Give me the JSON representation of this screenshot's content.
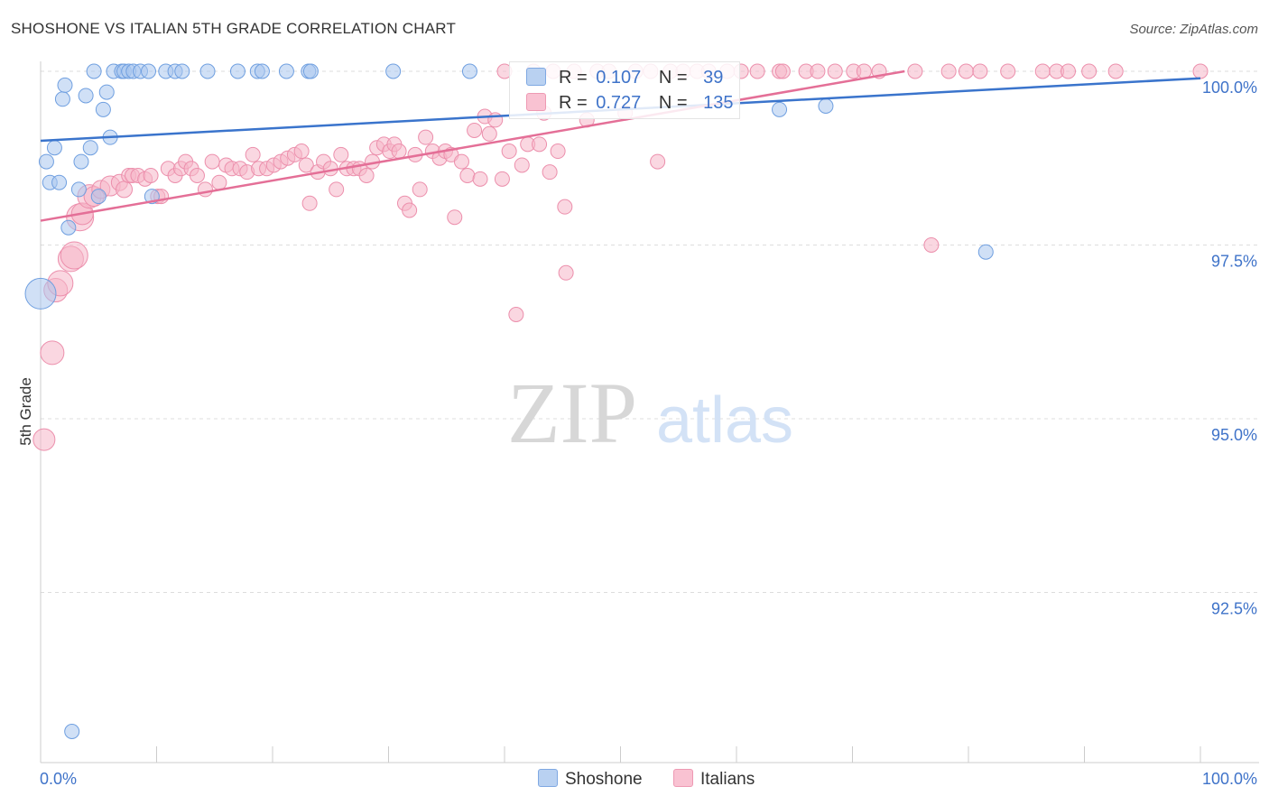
{
  "title": "SHOSHONE VS ITALIAN 5TH GRADE CORRELATION CHART",
  "source": "Source: ZipAtlas.com",
  "watermark": {
    "zip": "ZIP",
    "atlas": "atlas"
  },
  "legend_top": [
    {
      "r_label": "R =",
      "r_value": "0.107",
      "n_label": "N =",
      "n_value": "39"
    },
    {
      "r_label": "R =",
      "r_value": "0.727",
      "n_label": "N =",
      "n_value": "135"
    }
  ],
  "legend_bottom": [
    "Shoshone",
    "Italians"
  ],
  "colors": {
    "shoshone_fill": "#a9c6ef",
    "shoshone_stroke": "#6f9fe0",
    "shoshone_line": "#3a74cc",
    "italians_fill": "#f6b7c9",
    "italians_stroke": "#ec8fac",
    "italians_line": "#e46f97",
    "tick_text": "#3f73c9",
    "grid": "#dddddd"
  },
  "chart_data": {
    "type": "scatter",
    "title": "SHOSHONE VS ITALIAN 5TH GRADE CORRELATION CHART",
    "xlabel": "",
    "ylabel": "5th Grade",
    "xlim": [
      0,
      100
    ],
    "ylim": [
      90.2,
      100.4
    ],
    "x_tick_labels": [
      "0.0%",
      "100.0%"
    ],
    "y_ticks": [
      92.5,
      95.0,
      97.5,
      100.0
    ],
    "y_tick_labels": [
      "92.5%",
      "95.0%",
      "97.5%",
      "100.0%"
    ],
    "grid": true,
    "legend_position": "bottom",
    "series": [
      {
        "name": "Shoshone",
        "r": 0.107,
        "n": 39,
        "trend": {
          "x": [
            0,
            100
          ],
          "y": [
            99.0,
            99.9
          ]
        },
        "points": [
          [
            0,
            96.8,
            34
          ],
          [
            0.5,
            98.7,
            16
          ],
          [
            0.8,
            98.4,
            16
          ],
          [
            1.2,
            98.9,
            16
          ],
          [
            1.6,
            98.4,
            16
          ],
          [
            1.9,
            99.6,
            16
          ],
          [
            2.1,
            99.8,
            16
          ],
          [
            2.4,
            97.75,
            16
          ],
          [
            3.3,
            98.3,
            16
          ],
          [
            3.5,
            98.7,
            16
          ],
          [
            4.3,
            98.9,
            16
          ],
          [
            3.9,
            99.65,
            16
          ],
          [
            4.6,
            100,
            16
          ],
          [
            5.0,
            98.2,
            16
          ],
          [
            5.4,
            99.45,
            16
          ],
          [
            5.7,
            99.7,
            16
          ],
          [
            6.0,
            99.05,
            16
          ],
          [
            6.3,
            100,
            16
          ],
          [
            7.0,
            100,
            16
          ],
          [
            7.2,
            100,
            16
          ],
          [
            7.6,
            100,
            16
          ],
          [
            8.0,
            100,
            16
          ],
          [
            8.6,
            100,
            16
          ],
          [
            9.6,
            98.2,
            16
          ],
          [
            9.3,
            100,
            16
          ],
          [
            10.8,
            100,
            16
          ],
          [
            11.6,
            100,
            16
          ],
          [
            12.2,
            100,
            16
          ],
          [
            14.4,
            100,
            16
          ],
          [
            17.0,
            100,
            16
          ],
          [
            18.7,
            100,
            16
          ],
          [
            19.1,
            100,
            16
          ],
          [
            21.2,
            100,
            16
          ],
          [
            23.1,
            100,
            16
          ],
          [
            23.3,
            100,
            16
          ],
          [
            30.4,
            100,
            16
          ],
          [
            37.0,
            100,
            16
          ],
          [
            63.7,
            99.45,
            16
          ],
          [
            67.7,
            99.5,
            16
          ],
          [
            81.5,
            97.4,
            16
          ],
          [
            2.7,
            90.5,
            16
          ]
        ]
      },
      {
        "name": "Italians",
        "r": 0.727,
        "n": 135,
        "trend": {
          "x": [
            0,
            74.5
          ],
          "y": [
            97.85,
            100.0
          ]
        },
        "points": [
          [
            0.3,
            94.7,
            24
          ],
          [
            1.0,
            95.95,
            26
          ],
          [
            1.3,
            96.85,
            26
          ],
          [
            1.7,
            96.95,
            28
          ],
          [
            2.6,
            97.3,
            28
          ],
          [
            2.9,
            97.35,
            30
          ],
          [
            3.4,
            97.9,
            30
          ],
          [
            3.6,
            97.95,
            24
          ],
          [
            4.2,
            98.2,
            26
          ],
          [
            4.6,
            98.2,
            22
          ],
          [
            5.2,
            98.3,
            20
          ],
          [
            6.0,
            98.35,
            22
          ],
          [
            6.8,
            98.4,
            18
          ],
          [
            7.2,
            98.3,
            18
          ],
          [
            7.6,
            98.5,
            16
          ],
          [
            7.9,
            98.5,
            16
          ],
          [
            8.4,
            98.5,
            16
          ],
          [
            9.0,
            98.45,
            16
          ],
          [
            9.5,
            98.5,
            16
          ],
          [
            10.1,
            98.2,
            16
          ],
          [
            10.4,
            98.2,
            16
          ],
          [
            11.0,
            98.6,
            16
          ],
          [
            11.6,
            98.5,
            16
          ],
          [
            12.1,
            98.6,
            16
          ],
          [
            12.5,
            98.7,
            16
          ],
          [
            13.0,
            98.6,
            16
          ],
          [
            13.5,
            98.5,
            16
          ],
          [
            14.2,
            98.3,
            16
          ],
          [
            14.8,
            98.7,
            16
          ],
          [
            15.4,
            98.4,
            16
          ],
          [
            16.0,
            98.65,
            16
          ],
          [
            16.5,
            98.6,
            16
          ],
          [
            17.2,
            98.6,
            16
          ],
          [
            17.8,
            98.55,
            16
          ],
          [
            18.3,
            98.8,
            16
          ],
          [
            18.8,
            98.6,
            16
          ],
          [
            19.5,
            98.6,
            16
          ],
          [
            20.1,
            98.65,
            16
          ],
          [
            20.7,
            98.7,
            16
          ],
          [
            21.3,
            98.75,
            16
          ],
          [
            21.9,
            98.8,
            16
          ],
          [
            22.5,
            98.85,
            16
          ],
          [
            22.9,
            98.65,
            16
          ],
          [
            23.2,
            98.1,
            16
          ],
          [
            23.9,
            98.55,
            16
          ],
          [
            24.4,
            98.7,
            16
          ],
          [
            25.0,
            98.6,
            16
          ],
          [
            25.5,
            98.3,
            16
          ],
          [
            25.9,
            98.8,
            16
          ],
          [
            26.4,
            98.6,
            16
          ],
          [
            27.0,
            98.6,
            16
          ],
          [
            27.5,
            98.6,
            16
          ],
          [
            28.1,
            98.5,
            16
          ],
          [
            28.6,
            98.7,
            16
          ],
          [
            29.0,
            98.9,
            16
          ],
          [
            29.6,
            98.95,
            16
          ],
          [
            30.1,
            98.85,
            16
          ],
          [
            30.5,
            98.95,
            16
          ],
          [
            30.9,
            98.85,
            16
          ],
          [
            31.4,
            98.1,
            16
          ],
          [
            31.8,
            98.0,
            16
          ],
          [
            32.3,
            98.8,
            16
          ],
          [
            32.7,
            98.3,
            16
          ],
          [
            33.2,
            99.05,
            16
          ],
          [
            33.8,
            98.85,
            16
          ],
          [
            34.4,
            98.75,
            16
          ],
          [
            34.9,
            98.85,
            16
          ],
          [
            35.4,
            98.8,
            16
          ],
          [
            35.7,
            97.9,
            16
          ],
          [
            36.3,
            98.7,
            16
          ],
          [
            36.8,
            98.5,
            16
          ],
          [
            37.4,
            99.15,
            16
          ],
          [
            37.9,
            98.45,
            16
          ],
          [
            38.3,
            99.35,
            16
          ],
          [
            38.7,
            99.1,
            16
          ],
          [
            39.2,
            99.3,
            16
          ],
          [
            39.8,
            98.45,
            16
          ],
          [
            40.4,
            98.85,
            16
          ],
          [
            41.0,
            96.5,
            16
          ],
          [
            41.5,
            98.65,
            16
          ],
          [
            42.0,
            98.95,
            16
          ],
          [
            42.5,
            100.0,
            16
          ],
          [
            43.0,
            98.95,
            16
          ],
          [
            43.4,
            99.4,
            16
          ],
          [
            43.9,
            98.55,
            16
          ],
          [
            44.6,
            98.85,
            16
          ],
          [
            45.2,
            98.05,
            16
          ],
          [
            45.3,
            97.1,
            16
          ],
          [
            46.0,
            100.0,
            16
          ],
          [
            47.1,
            99.3,
            16
          ],
          [
            48.0,
            100.0,
            16
          ],
          [
            49.0,
            100.0,
            16
          ],
          [
            50.4,
            99.4,
            16
          ],
          [
            51.3,
            100.0,
            16
          ],
          [
            52.6,
            100.0,
            16
          ],
          [
            53.2,
            98.7,
            16
          ],
          [
            54.3,
            100.0,
            16
          ],
          [
            55.4,
            100.0,
            16
          ],
          [
            56.6,
            100.0,
            16
          ],
          [
            57.6,
            100.0,
            16
          ],
          [
            59.2,
            100.0,
            16
          ],
          [
            60.4,
            100.0,
            16
          ],
          [
            61.8,
            100.0,
            16
          ],
          [
            63.7,
            100.0,
            16
          ],
          [
            64.0,
            100.0,
            16
          ],
          [
            66.0,
            100.0,
            16
          ],
          [
            67.0,
            100.0,
            16
          ],
          [
            68.5,
            100.0,
            16
          ],
          [
            70.1,
            100.0,
            16
          ],
          [
            71.0,
            100.0,
            16
          ],
          [
            72.3,
            100.0,
            16
          ],
          [
            75.4,
            100.0,
            16
          ],
          [
            78.3,
            100.0,
            16
          ],
          [
            79.8,
            100.0,
            16
          ],
          [
            81.0,
            100.0,
            16
          ],
          [
            83.4,
            100.0,
            16
          ],
          [
            86.4,
            100.0,
            16
          ],
          [
            87.6,
            100.0,
            16
          ],
          [
            88.6,
            100.0,
            16
          ],
          [
            90.4,
            100.0,
            16
          ],
          [
            92.7,
            100.0,
            16
          ],
          [
            100.0,
            100.0,
            16
          ],
          [
            76.8,
            97.5,
            16
          ],
          [
            40.0,
            100.0,
            16
          ],
          [
            44.2,
            100.0,
            16
          ]
        ]
      }
    ]
  }
}
